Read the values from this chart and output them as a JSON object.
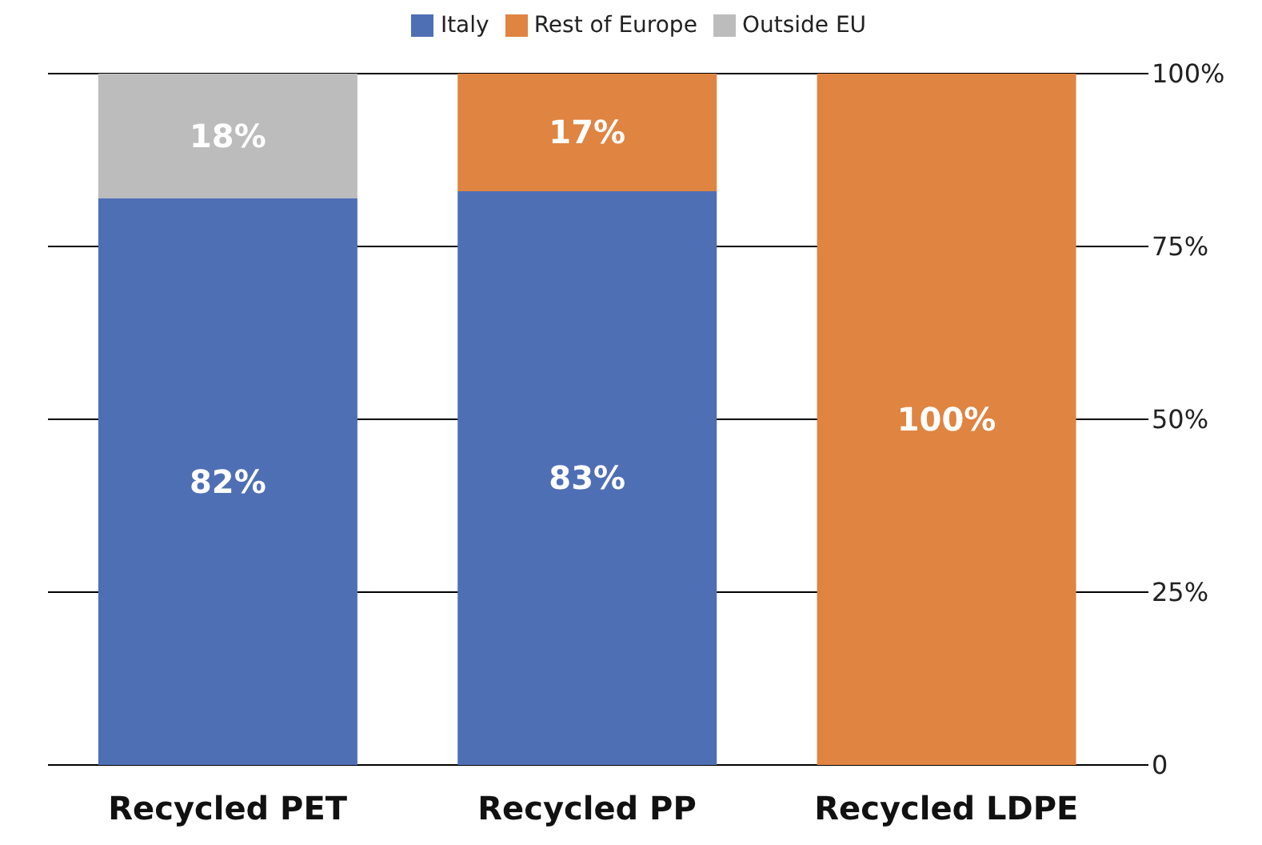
{
  "chart_data": {
    "type": "bar",
    "stacked": true,
    "categories": [
      "Recycled PET",
      "Recycled PP",
      "Recycled LDPE"
    ],
    "series": [
      {
        "name": "Italy",
        "color": "#4f6fb5",
        "values": [
          82,
          83,
          0
        ],
        "value_labels": [
          "82%",
          "83%",
          null
        ]
      },
      {
        "name": "Rest of Europe",
        "color": "#e08441",
        "values": [
          0,
          17,
          100
        ],
        "value_labels": [
          null,
          "17%",
          "100%"
        ]
      },
      {
        "name": "Outside EU",
        "color": "#bcbcbc",
        "values": [
          18,
          0,
          0
        ],
        "value_labels": [
          "18%",
          null,
          null
        ]
      }
    ],
    "ylim": [
      0,
      100
    ],
    "yticks": [
      0,
      {
        "value": 25,
        "label": "25%"
      },
      {
        "value": 50,
        "label": "50%"
      },
      {
        "value": 75,
        "label": "75%"
      },
      {
        "value": 100,
        "label": "100%"
      }
    ],
    "grid": "y",
    "legend": "top"
  }
}
